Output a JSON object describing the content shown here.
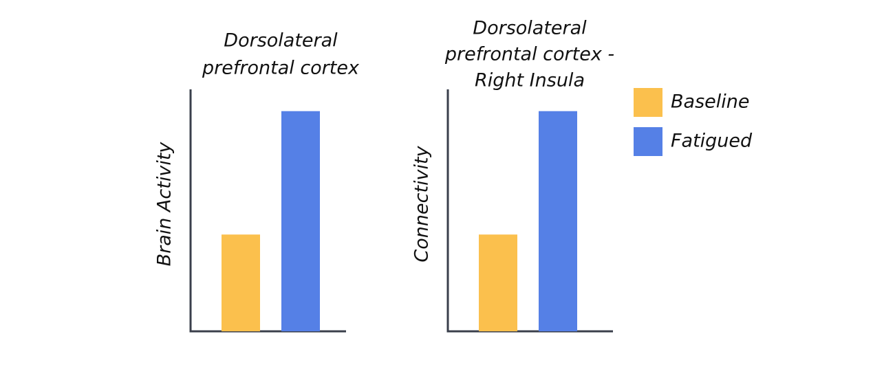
{
  "chart_data": [
    {
      "type": "bar",
      "title": [
        "Dorsolateral",
        "prefrontal cortex"
      ],
      "y_label": "Brain Activity",
      "values": [
        40,
        91
      ],
      "ylim": [
        0,
        100
      ]
    },
    {
      "type": "bar",
      "title": [
        "Dorsolateral",
        "prefrontal cortex -",
        "Right Insula"
      ],
      "y_label": "Connectivity",
      "values": [
        40,
        91
      ],
      "ylim": [
        0,
        100
      ]
    }
  ],
  "legend": [
    {
      "name": "Baseline",
      "color": "#fbc04d"
    },
    {
      "name": "Fatigued",
      "color": "#5580e6"
    }
  ]
}
